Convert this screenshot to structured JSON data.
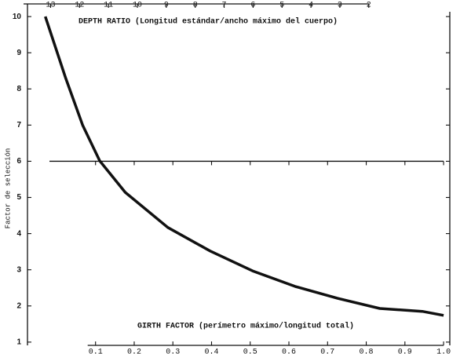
{
  "chart_data": {
    "type": "line",
    "x2label": "DEPTH RATIO (Longitud estándar/ancho máximo del cuerpo)",
    "xlabel": "GIRTH FACTOR (perímetro máximo/longitud total)",
    "ylabel": "Factor de selección",
    "x": [
      -0.03,
      0.023,
      0.067,
      0.111,
      0.177,
      0.287,
      0.396,
      0.506,
      0.616,
      0.726,
      0.835,
      0.945,
      1.0
    ],
    "values": [
      10.0,
      8.29,
      6.99,
      6.01,
      5.14,
      4.17,
      3.52,
      2.97,
      2.54,
      2.21,
      1.93,
      1.85,
      1.74
    ],
    "color": "#111111",
    "xlim": [
      -0.076,
      1.01
    ],
    "xticks": [
      0.1,
      0.2,
      0.3,
      0.4,
      0.5,
      0.6,
      0.7,
      0.8,
      0.9,
      {
        "value": 1,
        "label": "1.0"
      }
    ],
    "x2lim": [
      13.8,
      -0.72
    ],
    "x2ticks": [
      13,
      12,
      11,
      10,
      9,
      8,
      7,
      6,
      5,
      4,
      3,
      2
    ],
    "ylim": [
      0.91,
      10.35
    ],
    "yticks": [
      1,
      2,
      3,
      4,
      5,
      6,
      7,
      8,
      9,
      10
    ],
    "midline": 6
  }
}
